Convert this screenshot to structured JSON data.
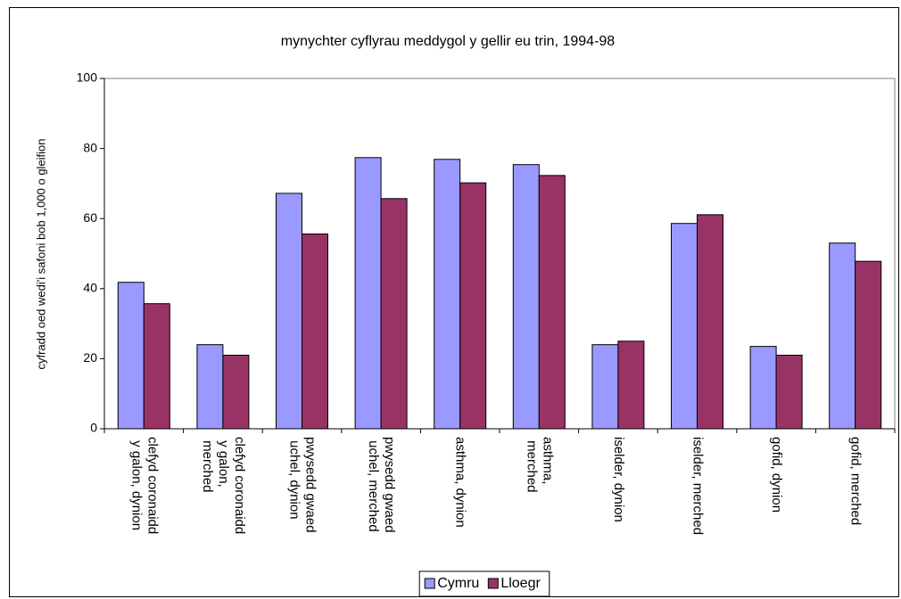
{
  "chart_data": {
    "type": "bar",
    "title": "mynychter cyflyrau meddygol y gellir eu trin, 1994-98",
    "y_label": "cyfradd oed wedi'i safoni bob 1,000 o gleifion",
    "categories": [
      "clefyd coronaidd y galon, dynion",
      "clefyd coronaidd y galon, merched",
      "pwysedd gwaed uchel, dynion",
      "pwysedd gwaed uchel, merched",
      "asthma, dynion",
      "asthma, merched",
      "iselder, dynion",
      "iselder, merched",
      "gofid, dynion",
      "gofid, merched"
    ],
    "series": [
      {
        "name": "Cymru",
        "color": "#9999ff",
        "values": [
          41.8,
          24,
          67.2,
          77.4,
          76.9,
          75.4,
          24,
          58.6,
          23.5,
          53
        ]
      },
      {
        "name": "Lloegr",
        "color": "#993366",
        "values": [
          35.7,
          21,
          55.6,
          65.7,
          70.2,
          72.3,
          25,
          61.1,
          21,
          47.8
        ]
      }
    ],
    "ylim": [
      0,
      100
    ],
    "yticks": [
      0,
      20,
      40,
      60,
      80,
      100
    ],
    "grid": false,
    "legend": "bottom"
  }
}
